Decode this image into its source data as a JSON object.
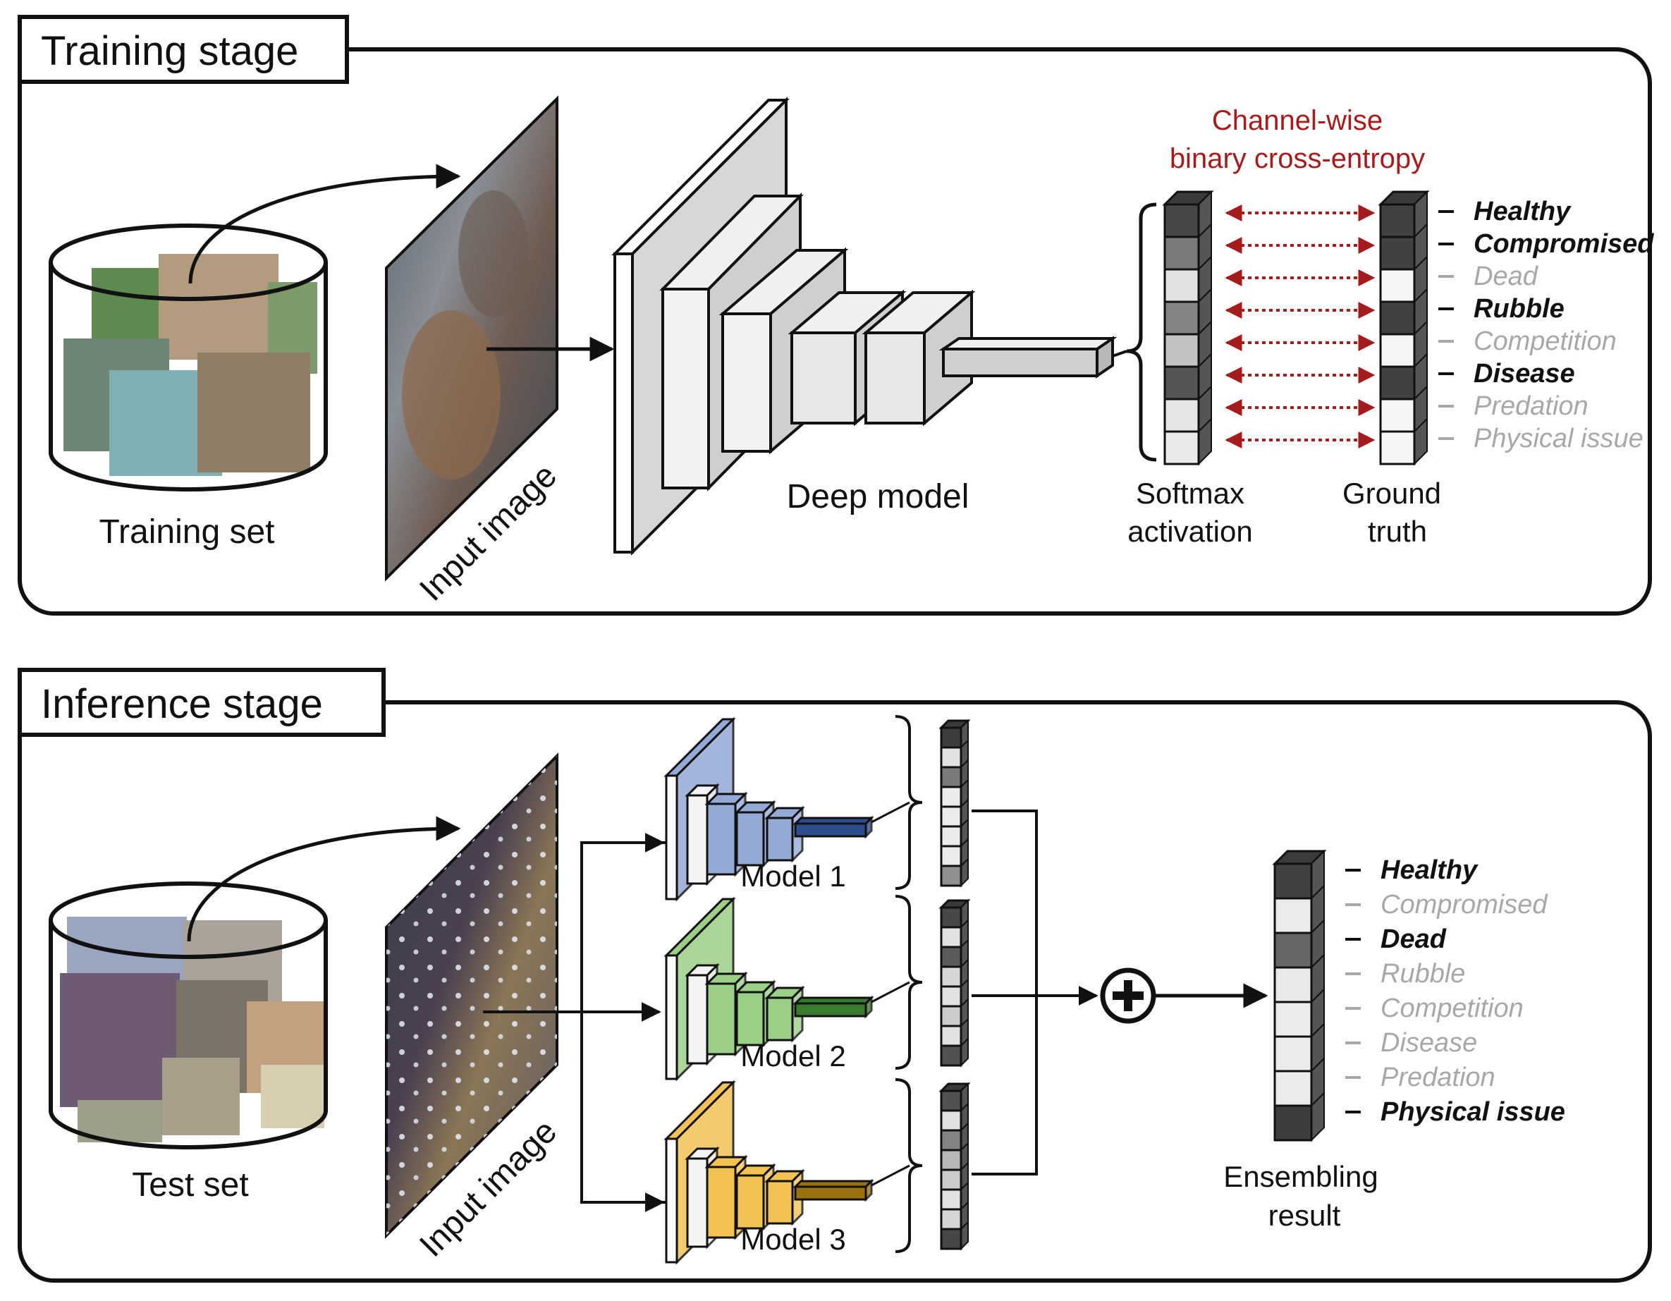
{
  "colors": {
    "channel_loss": "#a61b1b",
    "model1": "#93a9d6",
    "model2": "#9ccf86",
    "model3": "#f2c255",
    "active_class": "#111111",
    "inactive_class": "#a8a8a8"
  },
  "training": {
    "stage_title": "Training stage",
    "dataset_label": "Training set",
    "input_label": "Input image",
    "model_label": "Deep model",
    "loss_label_line1": "Channel-wise",
    "loss_label_line2": "binary cross-entropy",
    "softmax_line1": "Softmax",
    "softmax_line2": "activation",
    "gt_line1": "Ground",
    "gt_line2": "truth",
    "softmax_levels": [
      0.85,
      0.6,
      0.1,
      0.55,
      0.25,
      0.78,
      0.08,
      0.06
    ],
    "ground_truth": [
      1,
      1,
      0,
      1,
      0,
      1,
      0,
      0
    ],
    "classes": [
      {
        "label": "Healthy",
        "active": true
      },
      {
        "label": "Compromised",
        "active": true
      },
      {
        "label": "Dead",
        "active": false
      },
      {
        "label": "Rubble",
        "active": true
      },
      {
        "label": "Competition",
        "active": false
      },
      {
        "label": "Disease",
        "active": true
      },
      {
        "label": "Predation",
        "active": false
      },
      {
        "label": "Physical issue",
        "active": false
      }
    ]
  },
  "inference": {
    "stage_title": "Inference stage",
    "dataset_label": "Test set",
    "input_label": "Input image",
    "models": [
      {
        "label": "Model 1",
        "color": "#93a9d6",
        "dark": "#2e4d8f",
        "outputs": [
          0.9,
          0.1,
          0.6,
          0.05,
          0.05,
          0.05,
          0.05,
          0.5
        ]
      },
      {
        "label": "Model 2",
        "color": "#9ccf86",
        "dark": "#3a7a2e",
        "outputs": [
          0.85,
          0.1,
          0.75,
          0.15,
          0.1,
          0.2,
          0.1,
          0.8
        ]
      },
      {
        "label": "Model 3",
        "color": "#f2c255",
        "dark": "#9a7210",
        "outputs": [
          0.8,
          0.1,
          0.55,
          0.3,
          0.2,
          0.1,
          0.15,
          0.85
        ]
      }
    ],
    "ensemble_line1": "Ensembling",
    "ensemble_line2": "result",
    "ensemble_levels": [
      0.88,
      0.05,
      0.7,
      0.06,
      0.05,
      0.05,
      0.05,
      0.9
    ],
    "classes": [
      {
        "label": "Healthy",
        "active": true
      },
      {
        "label": "Compromised",
        "active": false
      },
      {
        "label": "Dead",
        "active": true
      },
      {
        "label": "Rubble",
        "active": false
      },
      {
        "label": "Competition",
        "active": false
      },
      {
        "label": "Disease",
        "active": false
      },
      {
        "label": "Predation",
        "active": false
      },
      {
        "label": "Physical issue",
        "active": true
      }
    ]
  }
}
